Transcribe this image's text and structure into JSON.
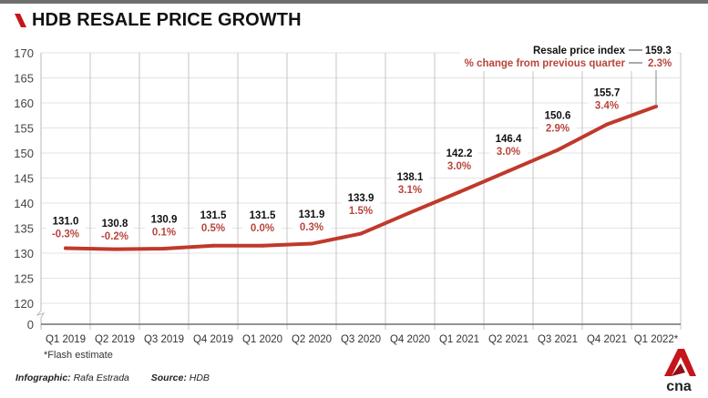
{
  "header": {
    "title": "HDB RESALE PRICE GROWTH"
  },
  "chart_data": {
    "type": "line",
    "title": "HDB RESALE PRICE GROWTH",
    "xlabel": "",
    "ylabel": "",
    "categories": [
      "Q1 2019",
      "Q2 2019",
      "Q3 2019",
      "Q4 2019",
      "Q1 2020",
      "Q2 2020",
      "Q3 2020",
      "Q4 2020",
      "Q1 2021",
      "Q2 2021",
      "Q3 2021",
      "Q4 2021",
      "Q1 2022*"
    ],
    "series": [
      {
        "name": "Resale price index",
        "values": [
          131.0,
          130.8,
          130.9,
          131.5,
          131.5,
          131.9,
          133.9,
          138.1,
          142.2,
          146.4,
          150.6,
          155.7,
          159.3
        ]
      },
      {
        "name": "% change from previous quarter",
        "values": [
          -0.3,
          -0.2,
          0.1,
          0.5,
          0.0,
          0.3,
          1.5,
          3.1,
          3.0,
          3.0,
          2.9,
          3.4,
          2.3
        ]
      }
    ],
    "value_labels": [
      "131.0",
      "130.8",
      "130.9",
      "131.5",
      "131.5",
      "131.9",
      "133.9",
      "138.1",
      "142.2",
      "146.4",
      "150.6",
      "155.7",
      "159.3"
    ],
    "pct_labels": [
      "-0.3%",
      "-0.2%",
      "0.1%",
      "0.5%",
      "0.0%",
      "0.3%",
      "1.5%",
      "3.1%",
      "3.0%",
      "3.0%",
      "2.9%",
      "3.4%",
      "2.3%"
    ],
    "ytick_values": [
      170,
      165,
      160,
      155,
      150,
      145,
      140,
      135,
      130,
      125,
      120,
      0
    ],
    "yticks": [
      "170",
      "165",
      "160",
      "155",
      "150",
      "145",
      "140",
      "135",
      "130",
      "125",
      "120",
      "0"
    ],
    "ylim": [
      120,
      170
    ],
    "axis_break": true,
    "grid": true,
    "legend": {
      "placement": "top-right",
      "index_label": "Resale price index",
      "pct_label": "% change from previous quarter"
    },
    "note": "*Flash estimate",
    "colors": {
      "line": "#c0392b",
      "pct_text": "#b8453b",
      "value_text": "#111111",
      "brand_red": "#c4161c"
    }
  },
  "footer": {
    "infographic_label": "Infographic:",
    "infographic_value": "Rafa Estrada",
    "source_label": "Source:",
    "source_value": "HDB"
  },
  "brand": {
    "logo_text": "cna"
  }
}
